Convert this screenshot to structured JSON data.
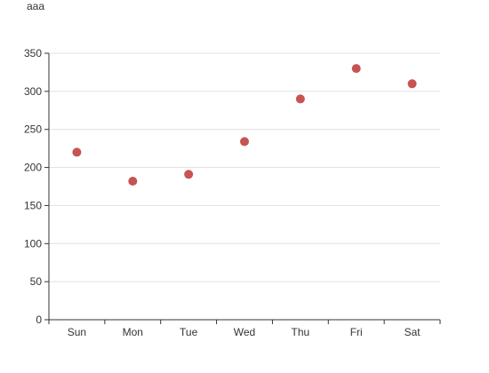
{
  "chart_data": {
    "type": "scatter",
    "title": "aaa",
    "categories": [
      "Sun",
      "Mon",
      "Tue",
      "Wed",
      "Thu",
      "Fri",
      "Sat"
    ],
    "values": [
      220,
      182,
      191,
      234,
      290,
      330,
      310
    ],
    "ylim": [
      0,
      350
    ],
    "yticks": [
      0,
      50,
      100,
      150,
      200,
      250,
      300,
      350
    ],
    "grid": true,
    "colors": {
      "point": "#c85353",
      "grid": "#e0e0e0",
      "axis": "#333333"
    }
  }
}
